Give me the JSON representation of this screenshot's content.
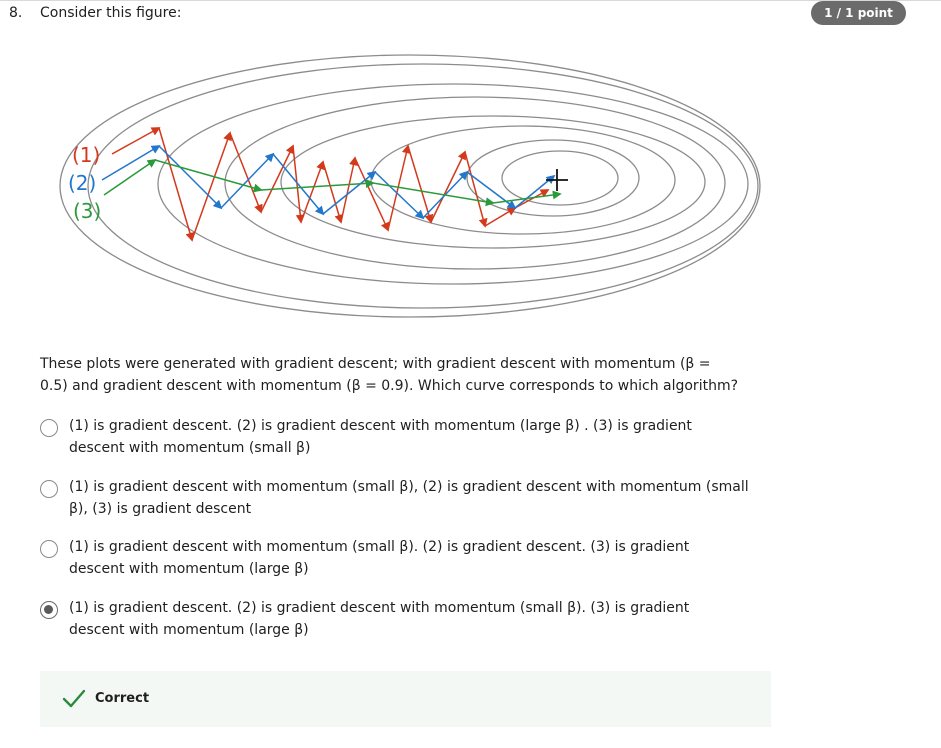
{
  "question": {
    "number": "8.",
    "title": "Consider this figure:",
    "score": "1 / 1 point",
    "prompt": "These plots were generated with gradient descent; with gradient descent with momentum (β = 0.5) and gradient descent with momentum (β = 0.9). Which curve corresponds to which algorithm?"
  },
  "figure": {
    "labels": [
      "(1)",
      "(2)",
      "(3)"
    ],
    "colors": {
      "curve1": "#d33a1c",
      "curve2": "#2277cc",
      "curve3": "#2b9a3b",
      "contour": "#8c8c8c"
    },
    "minimum_marker": "plus-icon"
  },
  "options": [
    {
      "text": "(1) is gradient descent. (2) is gradient descent with momentum (large β) . (3) is gradient descent with momentum (small β)",
      "selected": false
    },
    {
      "text": "(1) is gradient descent with momentum (small β), (2) is gradient descent with momentum (small β), (3) is gradient descent",
      "selected": false
    },
    {
      "text": "(1) is gradient descent with momentum (small β). (2) is gradient descent. (3) is gradient descent with momentum (large β)",
      "selected": false
    },
    {
      "text": "(1) is gradient descent. (2) is gradient descent with momentum (small β). (3) is gradient descent with momentum (large β)",
      "selected": true
    }
  ],
  "feedback": {
    "label": "Correct",
    "icon": "checkmark-icon",
    "color": "#2b8a3e"
  }
}
